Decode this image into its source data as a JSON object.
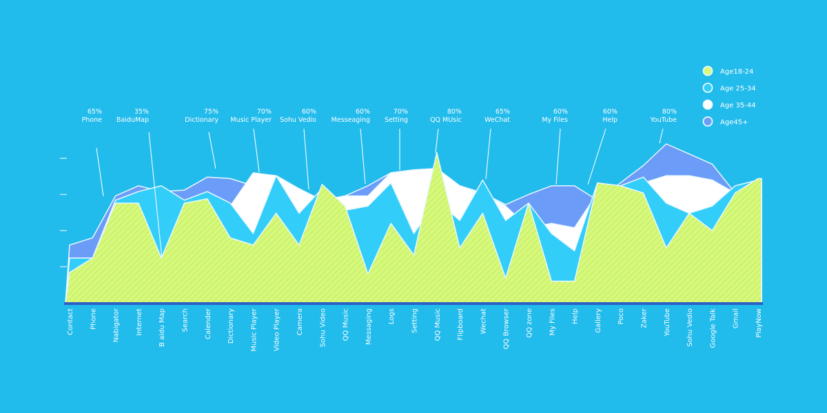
{
  "chart_data": {
    "type": "area",
    "title": "",
    "xlabel": "",
    "ylabel": "",
    "ylim": [
      0,
      115
    ],
    "yticks": [
      25,
      50,
      75,
      100
    ],
    "grid": false,
    "legend_position": "top-right",
    "categories": [
      "Contact",
      "Phone",
      "Nabigator",
      "Internet",
      "B aidu Map",
      "Search",
      "Calender",
      "Dictionary",
      "Music Player",
      "Video Player",
      "Camera",
      "Sohu Video",
      "QQ Music",
      "Messaging",
      "Logs",
      "Setting",
      "QQ Music",
      "Flipboard",
      "Wechat",
      "QQ Browser",
      "QQ zone",
      "My Files",
      "Help",
      "Gallery",
      "Poco",
      "Zaker",
      "YouTube",
      "Sohu Vedio",
      "Google Talk",
      "Gmail",
      "PlayNow"
    ],
    "series": [
      {
        "name": "Age45+",
        "color": "#6b9cf8",
        "values": [
          40,
          45,
          74,
          81,
          77,
          78,
          87,
          86,
          81,
          88,
          79,
          71,
          74,
          81,
          90,
          92,
          93,
          81,
          76,
          68,
          75,
          81,
          81,
          71,
          83,
          95,
          110,
          103,
          96,
          76,
          85
        ]
      },
      {
        "name": "Age 35-44",
        "color": "#ffffff",
        "values": [
          31,
          31,
          71,
          77,
          77,
          71,
          77,
          67,
          90,
          88,
          79,
          71,
          74,
          74,
          90,
          92,
          93,
          81,
          76,
          67,
          52,
          55,
          52,
          76,
          81,
          83,
          88,
          88,
          85,
          76,
          85
        ]
      },
      {
        "name": "Age 25-34",
        "color": "#33cdf9",
        "values": [
          31,
          31,
          71,
          77,
          81,
          71,
          77,
          69,
          48,
          88,
          62,
          79,
          64,
          67,
          83,
          48,
          71,
          57,
          85,
          57,
          69,
          48,
          36,
          83,
          81,
          87,
          69,
          62,
          67,
          81,
          85
        ]
      },
      {
        "name": "Age18-24",
        "color": "#d6f87c",
        "values": [
          21,
          31,
          69,
          69,
          31,
          69,
          72,
          45,
          40,
          62,
          40,
          82,
          67,
          20,
          55,
          33,
          104,
          38,
          62,
          17,
          69,
          15,
          15,
          83,
          81,
          76,
          38,
          62,
          50,
          76,
          86
        ]
      }
    ],
    "annotations": [
      {
        "value": "65%",
        "label": "Phone"
      },
      {
        "value": "35%",
        "label": "BaiduMap"
      },
      {
        "value": "75%",
        "label": "Dictionary"
      },
      {
        "value": "70%",
        "label": "Music Player"
      },
      {
        "value": "60%",
        "label": "Sohu Vedio"
      },
      {
        "value": "60%",
        "label": "Messeaging"
      },
      {
        "value": "70%",
        "label": "Setting"
      },
      {
        "value": "80%",
        "label": "QQ MUsic"
      },
      {
        "value": "65%",
        "label": "WeChat"
      },
      {
        "value": "60%",
        "label": "My Files"
      },
      {
        "value": "60%",
        "label": "Help"
      },
      {
        "value": "80%",
        "label": "YouTube"
      }
    ],
    "legend": [
      "Age18-24",
      "Age 25-34",
      "Age 35-44",
      "Age45+"
    ]
  },
  "colors": {
    "background": "#21bbec",
    "baseline": "#2d5fc6"
  }
}
